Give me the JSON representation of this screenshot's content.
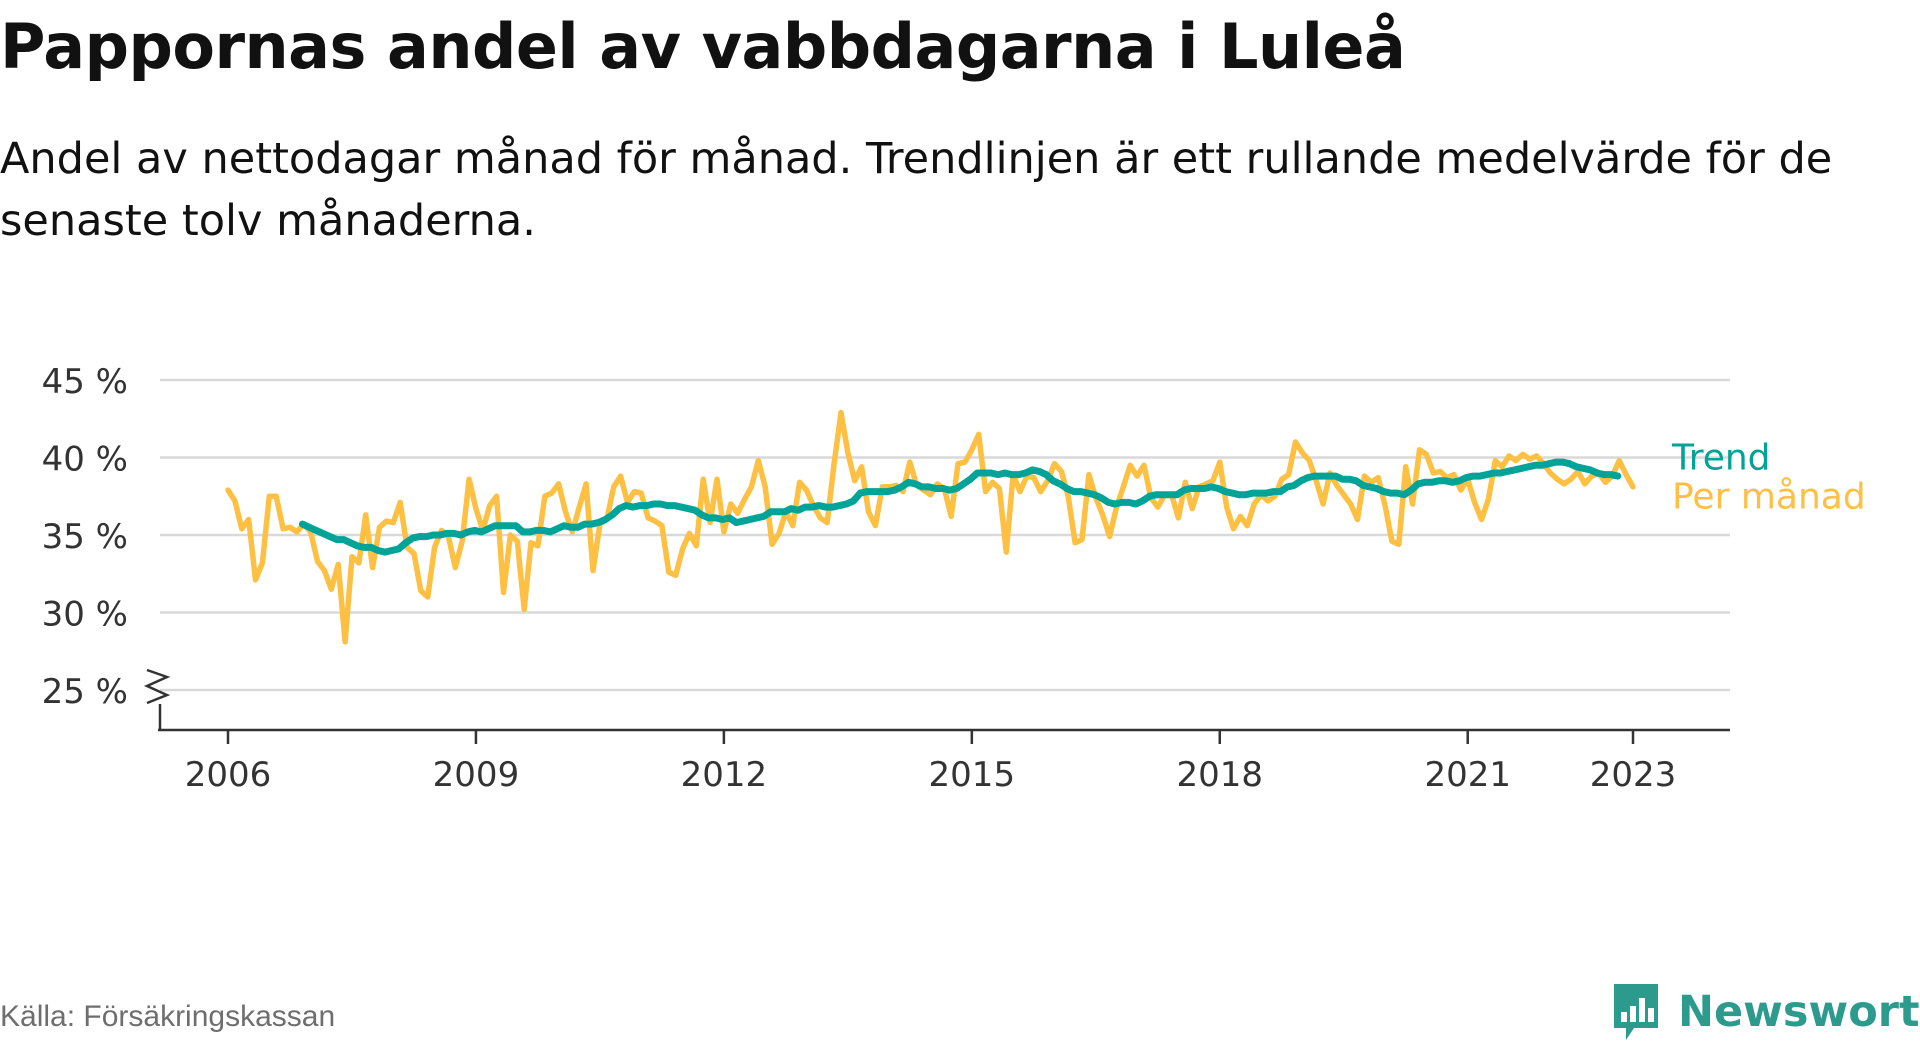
{
  "header": {
    "title": "Pappornas andel av vabbdagarna i Luleå",
    "subtitle": "Andel av nettodagar månad för månad. Trendlinjen är ett rullande medelvärde för de senaste tolv månaderna."
  },
  "footer": {
    "source": "Källa: Försäkringskassan",
    "brand": "Newsworthy",
    "brand_icon": "bar-chart-icon"
  },
  "colors": {
    "monthly": "#fdc042",
    "trend": "#00a397",
    "grid": "#d9d9d9",
    "axis": "#333333",
    "brand": "#2c9b8e"
  },
  "chart_data": {
    "type": "line",
    "title": "Pappornas andel av vabbdagarna i Luleå",
    "xlabel": "",
    "ylabel": "",
    "x_range": [
      2006,
      2024.2
    ],
    "ylim": [
      25,
      45
    ],
    "y_ticks": [
      25,
      30,
      35,
      40,
      45
    ],
    "y_tick_labels": [
      "25 %",
      "30 %",
      "35 %",
      "40 %",
      "45 %"
    ],
    "x_ticks": [
      2006,
      2009,
      2012,
      2015,
      2018,
      2021,
      2023
    ],
    "x_tick_labels": [
      "2006",
      "2009",
      "2012",
      "2015",
      "2018",
      "2021",
      "2023"
    ],
    "axis_break": "y",
    "grid": "horizontal",
    "legend": "direct labels at end of lines",
    "series": [
      {
        "name": "Trend",
        "color": "#00a397",
        "start": 2006.9,
        "step_months": 1,
        "values": [
          35.7,
          35.5,
          35.3,
          35.1,
          34.9,
          34.7,
          34.7,
          34.5,
          34.3,
          34.2,
          34.2,
          34.0,
          33.9,
          34.0,
          34.1,
          34.5,
          34.8,
          34.9,
          34.9,
          35.0,
          35.0,
          35.1,
          35.1,
          35.0,
          35.2,
          35.3,
          35.2,
          35.4,
          35.6,
          35.6,
          35.6,
          35.6,
          35.2,
          35.2,
          35.3,
          35.3,
          35.2,
          35.4,
          35.6,
          35.5,
          35.5,
          35.7,
          35.7,
          35.8,
          36.0,
          36.3,
          36.7,
          36.9,
          36.8,
          36.9,
          36.9,
          37.0,
          37.0,
          36.9,
          36.9,
          36.8,
          36.7,
          36.6,
          36.3,
          36.1,
          36.1,
          36.0,
          36.1,
          35.8,
          35.9,
          36.0,
          36.1,
          36.2,
          36.5,
          36.5,
          36.5,
          36.7,
          36.6,
          36.8,
          36.8,
          36.9,
          36.8,
          36.8,
          36.9,
          37.0,
          37.2,
          37.7,
          37.8,
          37.8,
          37.8,
          37.8,
          37.9,
          38.1,
          38.4,
          38.3,
          38.1,
          38.1,
          38.0,
          38.0,
          37.9,
          38.0,
          38.3,
          38.6,
          39.0,
          39.0,
          39.0,
          38.9,
          39.0,
          38.9,
          38.9,
          39.0,
          39.2,
          39.1,
          38.9,
          38.5,
          38.3,
          38.0,
          37.8,
          37.8,
          37.7,
          37.6,
          37.4,
          37.1,
          37.0,
          37.1,
          37.1,
          37.0,
          37.2,
          37.5,
          37.6,
          37.6,
          37.6,
          37.6,
          37.9,
          38.0,
          38.0,
          38.0,
          38.1,
          38.0,
          37.8,
          37.7,
          37.6,
          37.6,
          37.7,
          37.7,
          37.7,
          37.8,
          37.8,
          38.1,
          38.2,
          38.5,
          38.7,
          38.8,
          38.8,
          38.8,
          38.8,
          38.6,
          38.6,
          38.5,
          38.2,
          38.1,
          38.0,
          37.8,
          37.7,
          37.7,
          37.6,
          37.9,
          38.3,
          38.4,
          38.4,
          38.5,
          38.5,
          38.4,
          38.5,
          38.7,
          38.8,
          38.8,
          38.9,
          39.0,
          39.0,
          39.1,
          39.2,
          39.3,
          39.4,
          39.5,
          39.5,
          39.6,
          39.7,
          39.7,
          39.6,
          39.4,
          39.3,
          39.2,
          39.0,
          38.9,
          38.9,
          38.8
        ]
      },
      {
        "name": "Per månad",
        "color": "#fdc042",
        "start": 2006.0,
        "step_months": 1,
        "values": [
          37.9,
          37.2,
          35.4,
          36.0,
          32.1,
          33.2,
          37.5,
          37.5,
          35.4,
          35.5,
          35.2,
          35.7,
          35.2,
          33.3,
          32.7,
          31.5,
          33.1,
          28.1,
          33.6,
          33.2,
          36.3,
          32.9,
          35.5,
          35.9,
          35.8,
          37.1,
          34.2,
          33.8,
          31.4,
          31.0,
          34.2,
          35.3,
          34.9,
          32.9,
          34.6,
          38.6,
          36.7,
          35.3,
          36.9,
          37.5,
          31.3,
          35.0,
          34.6,
          30.2,
          34.5,
          34.3,
          37.5,
          37.7,
          38.3,
          36.5,
          35.2,
          36.8,
          38.3,
          32.7,
          35.7,
          36.0,
          38.1,
          38.8,
          37.1,
          37.8,
          37.7,
          36.1,
          35.9,
          35.6,
          32.6,
          32.4,
          34.1,
          35.1,
          34.3,
          38.6,
          35.8,
          38.6,
          35.2,
          37.0,
          36.4,
          37.3,
          38.1,
          39.8,
          38.1,
          34.4,
          35.1,
          36.5,
          35.6,
          38.4,
          37.9,
          36.9,
          36.1,
          35.8,
          39.6,
          42.9,
          40.3,
          38.5,
          39.4,
          36.5,
          35.6,
          38.1,
          38.1,
          38.2,
          37.8,
          39.7,
          38.2,
          37.9,
          37.6,
          38.3,
          38.0,
          36.2,
          39.6,
          39.7,
          40.5,
          41.5,
          37.8,
          38.4,
          38.0,
          33.9,
          38.9,
          37.8,
          38.8,
          38.7,
          37.8,
          38.5,
          39.6,
          39.1,
          37.5,
          34.5,
          34.7,
          38.9,
          37.4,
          36.3,
          34.9,
          36.8,
          38.1,
          39.5,
          38.8,
          39.5,
          37.4,
          36.8,
          37.6,
          37.6,
          36.1,
          38.4,
          36.7,
          38.1,
          38.3,
          38.5,
          39.7,
          36.8,
          35.4,
          36.2,
          35.6,
          37.0,
          37.6,
          37.2,
          37.5,
          38.6,
          38.9,
          41.0,
          40.3,
          39.8,
          38.5,
          37.0,
          39.0,
          38.2,
          37.6,
          37.0,
          36.0,
          38.8,
          38.4,
          38.7,
          36.9,
          34.6,
          34.4,
          39.4,
          37.0,
          40.5,
          40.2,
          39.0,
          39.1,
          38.7,
          38.9,
          37.9,
          38.6,
          37.1,
          36.0,
          37.3,
          39.8,
          39.4,
          40.1,
          39.8,
          40.2,
          39.9,
          40.1,
          39.6,
          39.0,
          38.6,
          38.3,
          38.6,
          39.1,
          38.3,
          38.8,
          39.0,
          38.4,
          38.8,
          39.8,
          38.9,
          38.1
        ]
      }
    ]
  }
}
